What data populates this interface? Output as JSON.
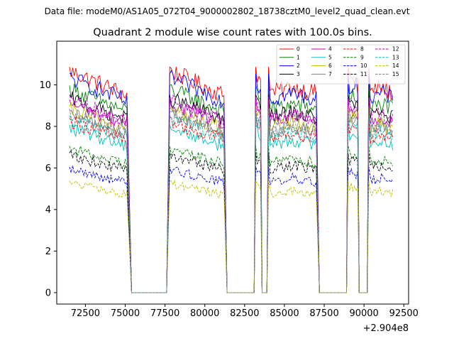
{
  "suptitle": "Data file: modeM0/AS1A05_072T04_9000002802_18738cztM0_level2_quad_clean.evt",
  "chart_data": {
    "type": "line",
    "title": "Quadrant 2 module wise count rates with 100.0s bins.",
    "xlabel": "",
    "ylabel": "",
    "x_offset_label": "+2.904e8",
    "xlim": [
      70700,
      92800
    ],
    "ylim": [
      -0.55,
      12.1
    ],
    "x_ticks": [
      72500,
      75000,
      77500,
      80000,
      82500,
      85000,
      87500,
      90000,
      92500
    ],
    "x_tick_labels": [
      "72500",
      "75000",
      "77500",
      "80000",
      "82500",
      "85000",
      "87500",
      "90000",
      "92500"
    ],
    "y_ticks": [
      0,
      2,
      4,
      6,
      8,
      10
    ],
    "y_tick_labels": [
      "0",
      "2",
      "4",
      "6",
      "8",
      "10"
    ],
    "segments": [
      {
        "start": 71500,
        "end": 75100,
        "shape": "decay"
      },
      {
        "start": 75400,
        "end": 77600,
        "shape": "zero"
      },
      {
        "start": 77800,
        "end": 81200,
        "shape": "decay"
      },
      {
        "start": 81400,
        "end": 83100,
        "shape": "zero"
      },
      {
        "start": 83200,
        "end": 83500,
        "shape": "peak"
      },
      {
        "start": 83600,
        "end": 83900,
        "shape": "zero"
      },
      {
        "start": 84000,
        "end": 87000,
        "shape": "flat"
      },
      {
        "start": 87200,
        "end": 88900,
        "shape": "zero"
      },
      {
        "start": 89000,
        "end": 89600,
        "shape": "peak"
      },
      {
        "start": 89700,
        "end": 90200,
        "shape": "zero"
      },
      {
        "start": 90300,
        "end": 91800,
        "shape": "flat"
      }
    ],
    "series": [
      {
        "name": "0",
        "color": "#ff0000",
        "dash": "solid",
        "level": 9.7
      },
      {
        "name": "1",
        "color": "#008000",
        "dash": "solid",
        "level": 8.9
      },
      {
        "name": "2",
        "color": "#0000ff",
        "dash": "solid",
        "level": 9.4
      },
      {
        "name": "3",
        "color": "#000000",
        "dash": "solid",
        "level": 8.5
      },
      {
        "name": "4",
        "color": "#bf00bf",
        "dash": "solid",
        "level": 8.3
      },
      {
        "name": "5",
        "color": "#00bfbf",
        "dash": "solid",
        "level": 7.2
      },
      {
        "name": "6",
        "color": "#bfbf00",
        "dash": "solid",
        "level": 8.0
      },
      {
        "name": "7",
        "color": "#808080",
        "dash": "solid",
        "level": 7.8
      },
      {
        "name": "8",
        "color": "#ff0000",
        "dash": "dashed",
        "level": 7.5
      },
      {
        "name": "9",
        "color": "#008000",
        "dash": "dashed",
        "level": 6.3
      },
      {
        "name": "10",
        "color": "#0000ff",
        "dash": "dashed",
        "level": 5.4
      },
      {
        "name": "11",
        "color": "#000000",
        "dash": "dashed",
        "level": 6.0
      },
      {
        "name": "12",
        "color": "#bf00bf",
        "dash": "dashed",
        "level": 8.4
      },
      {
        "name": "13",
        "color": "#00bfbf",
        "dash": "dashed",
        "level": 7.6
      },
      {
        "name": "14",
        "color": "#bfbf00",
        "dash": "dashed",
        "level": 4.8
      },
      {
        "name": "15",
        "color": "#808080",
        "dash": "dashed",
        "level": 7.9
      }
    ],
    "legend": {
      "location": "upper right",
      "columns": 4
    }
  }
}
